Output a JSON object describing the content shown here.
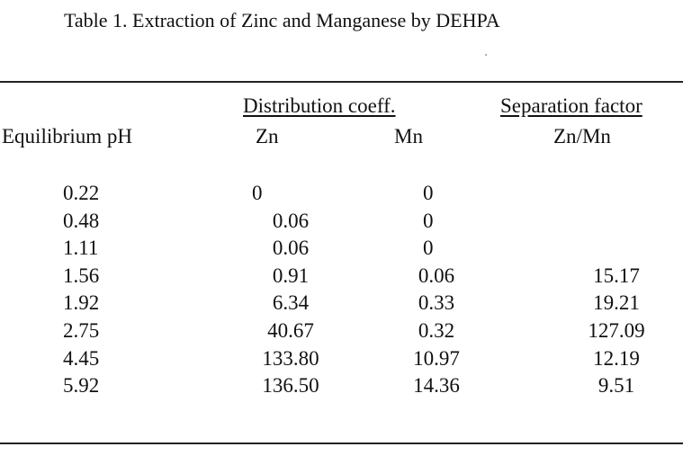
{
  "table": {
    "caption": "Table 1.  Extraction of Zinc and Manganese by DEHPA",
    "headers": {
      "distribution_group": "Distribution  coeff.",
      "separation_group": "Separation factor",
      "equilibrium_ph": "Equilibrium pH",
      "zn": "Zn",
      "mn": "Mn",
      "zn_mn": "Zn/Mn"
    },
    "rows": [
      {
        "ph": "0.22",
        "zn": "0",
        "mn": "0",
        "sep": ""
      },
      {
        "ph": "0.48",
        "zn": "0.06",
        "mn": "0",
        "sep": ""
      },
      {
        "ph": "1.11",
        "zn": "0.06",
        "mn": "0",
        "sep": ""
      },
      {
        "ph": "1.56",
        "zn": "0.91",
        "mn": "0.06",
        "sep": "15.17"
      },
      {
        "ph": "1.92",
        "zn": "6.34",
        "mn": "0.33",
        "sep": "19.21"
      },
      {
        "ph": "2.75",
        "zn": "40.67",
        "mn": "0.32",
        "sep": "127.09"
      },
      {
        "ph": "4.45",
        "zn": "133.80",
        "mn": "10.97",
        "sep": "12.19"
      },
      {
        "ph": "5.92",
        "zn": "136.50",
        "mn": "14.36",
        "sep": "9.51"
      }
    ]
  }
}
